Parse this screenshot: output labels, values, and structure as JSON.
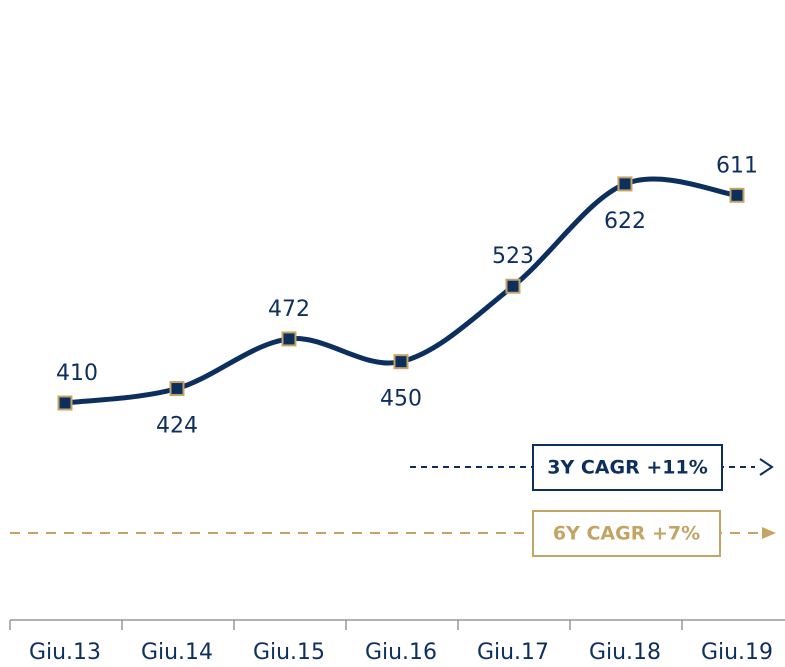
{
  "chart_data": {
    "type": "line",
    "categories": [
      "Giu.13",
      "Giu.14",
      "Giu.15",
      "Giu.16",
      "Giu.17",
      "Giu.18",
      "Giu.19"
    ],
    "series": [
      {
        "color": "#0d2f5e",
        "marker_edge_color": "#c4a465",
        "values": [
          410,
          424,
          472,
          450,
          523,
          622,
          611
        ]
      }
    ],
    "ylim": [
      200,
      800
    ],
    "annotations": [
      {
        "text": "3Y CAGR +11%",
        "color": "#0d2f5e"
      },
      {
        "text": "6Y CAGR +7%",
        "color": "#c4a465"
      }
    ]
  }
}
